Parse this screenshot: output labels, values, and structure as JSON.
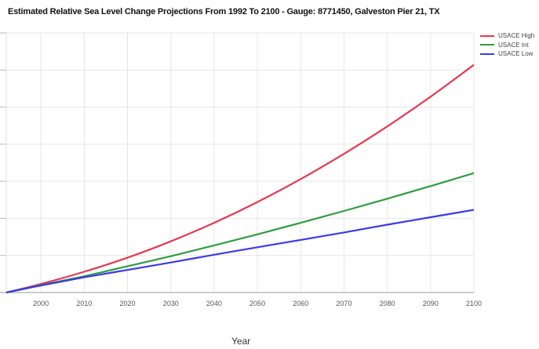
{
  "chart_data": {
    "type": "line",
    "title": "Estimated Relative Sea Level Change Projections From 1992 To 2100 - Gauge: 8771450, Galveston Pier 21, TX",
    "xlabel": "Year",
    "ylabel": "",
    "xlim": [
      1992,
      2100
    ],
    "ylim": [
      0,
      7
    ],
    "x_ticks": [
      2000,
      2010,
      2020,
      2030,
      2040,
      2050,
      2060,
      2070,
      2080,
      2090,
      2100
    ],
    "y_gridlines": [
      0,
      1,
      2,
      3,
      4,
      5,
      6,
      7
    ],
    "grid": true,
    "legend_position": "right",
    "x": [
      1992,
      2000,
      2010,
      2020,
      2030,
      2040,
      2050,
      2060,
      2070,
      2080,
      2090,
      2100
    ],
    "series": [
      {
        "name": "USACE High",
        "color": "#e8384f",
        "values": [
          0,
          0.23,
          0.56,
          0.94,
          1.38,
          1.88,
          2.44,
          3.06,
          3.74,
          4.48,
          5.28,
          6.14
        ]
      },
      {
        "name": "USACE Int",
        "color": "#2e9e3f",
        "values": [
          0,
          0.2,
          0.44,
          0.71,
          0.98,
          1.27,
          1.57,
          1.88,
          2.2,
          2.53,
          2.87,
          3.22
        ]
      },
      {
        "name": "USACE Low",
        "color": "#3a3ae8",
        "values": [
          0,
          0.19,
          0.41,
          0.61,
          0.81,
          1.02,
          1.22,
          1.42,
          1.62,
          1.83,
          2.03,
          2.23
        ]
      }
    ]
  }
}
